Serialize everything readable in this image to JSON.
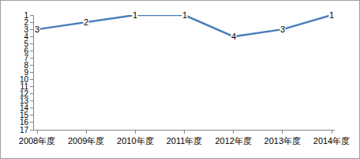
{
  "chart_data": {
    "type": "line",
    "categories": [
      "2008年度",
      "2009年度",
      "2010年度",
      "2011年度",
      "2012年度",
      "2013年度",
      "2014年度"
    ],
    "values": [
      3,
      2,
      1,
      1,
      4,
      3,
      1
    ],
    "color": "#4a7ebb",
    "ylim": [
      17,
      1
    ],
    "yticks": [
      1,
      2,
      3,
      4,
      5,
      6,
      7,
      8,
      9,
      10,
      11,
      12,
      13,
      14,
      15,
      16,
      17
    ],
    "grid": false,
    "data_labels": true
  }
}
